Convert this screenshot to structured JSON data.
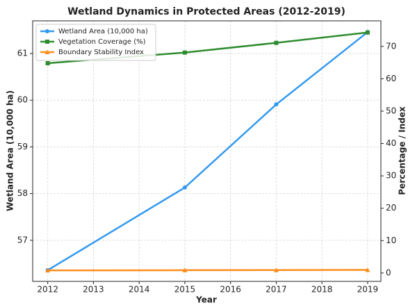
{
  "chart_data": {
    "type": "line",
    "title": "Wetland Dynamics in Protected Areas (2012-2019)",
    "x_label": "Year",
    "y_label": "Wetland Area (10,000 ha)",
    "y2_label": "Percentage / Index",
    "x": [
      2012,
      2015,
      2017,
      2019
    ],
    "series": [
      {
        "name": "Wetland Area (10,000 ha)",
        "color": "#3399ee",
        "marker": "circle",
        "values": [
          56.36,
          58.13,
          59.91,
          61.46
        ]
      },
      {
        "name": "Vegetation Coverage (%)",
        "color": "#2e8b2e",
        "marker": "square",
        "axis": "y2",
        "values": [
          64.8,
          68.1,
          71.1,
          74.3
        ]
      },
      {
        "name": "Boundary Stability Index",
        "color": "#ff8c1a",
        "marker": "triangle",
        "axis": "y2",
        "values": [
          0.8,
          0.85,
          0.9,
          0.95
        ]
      }
    ],
    "xlim": [
      2011.67,
      2019.29
    ],
    "xticks": [
      2012,
      2013,
      2014,
      2015,
      2016,
      2017,
      2018,
      2019
    ],
    "ylim": [
      56.12,
      61.7
    ],
    "yticks": [
      57,
      58,
      59,
      60,
      61
    ],
    "y2lim": [
      -2.6,
      77.9
    ],
    "y2ticks": [
      0,
      10,
      20,
      30,
      40,
      50,
      60,
      70
    ],
    "grid": true,
    "legend": "upper left"
  }
}
